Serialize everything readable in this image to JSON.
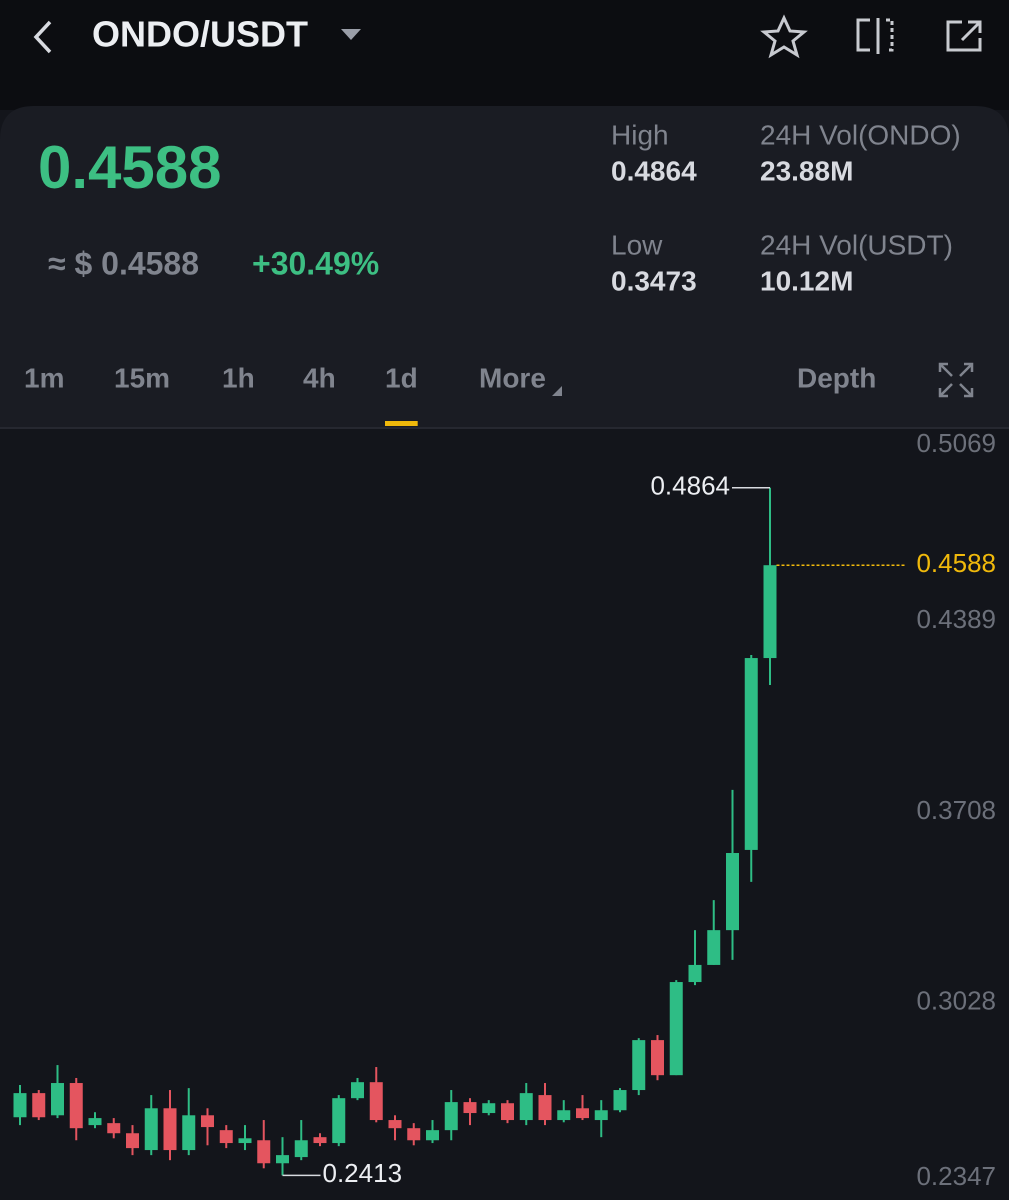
{
  "header": {
    "title": "ONDO/USDT"
  },
  "ticker": {
    "last": "0.4588",
    "approx": "≈ $ 0.4588",
    "change": "+30.49%",
    "stats": [
      {
        "label": "High",
        "value": "0.4864"
      },
      {
        "label": "24H Vol(ONDO)",
        "value": "23.88M"
      },
      {
        "label": "Low",
        "value": "0.3473"
      },
      {
        "label": "24H Vol(USDT)",
        "value": "10.12M"
      }
    ]
  },
  "tabs": {
    "intervals": [
      "1m",
      "15m",
      "1h",
      "4h",
      "1d"
    ],
    "active": 4,
    "more": "More",
    "depth": "Depth"
  },
  "chart_data": {
    "type": "candlestick",
    "up_color": "#2ebd85",
    "down_color": "#e4555f",
    "last_color": "#f0b90b",
    "ylim": [
      0.2325,
      0.507
    ],
    "yticks": [
      0.5069,
      0.4389,
      0.3708,
      0.3028,
      0.2347
    ],
    "ohlc": [
      [
        0.262,
        0.2735,
        0.2592,
        0.2706
      ],
      [
        0.2706,
        0.2717,
        0.261,
        0.262
      ],
      [
        0.2627,
        0.2806,
        0.2617,
        0.2742
      ],
      [
        0.2742,
        0.276,
        0.2538,
        0.2581
      ],
      [
        0.2592,
        0.2638,
        0.2581,
        0.2617
      ],
      [
        0.2599,
        0.2617,
        0.2545,
        0.2563
      ],
      [
        0.2563,
        0.2592,
        0.2485,
        0.251
      ],
      [
        0.2503,
        0.2699,
        0.2485,
        0.2652
      ],
      [
        0.2652,
        0.2717,
        0.2467,
        0.2503
      ],
      [
        0.2503,
        0.2724,
        0.2485,
        0.2627
      ],
      [
        0.2627,
        0.2652,
        0.252,
        0.2585
      ],
      [
        0.2574,
        0.2592,
        0.251,
        0.2528
      ],
      [
        0.2528,
        0.2592,
        0.2503,
        0.2545
      ],
      [
        0.2538,
        0.261,
        0.2438,
        0.2456
      ],
      [
        0.2456,
        0.2549,
        0.2413,
        0.2485
      ],
      [
        0.2478,
        0.261,
        0.2467,
        0.2538
      ],
      [
        0.2549,
        0.2563,
        0.2517,
        0.2528
      ],
      [
        0.2528,
        0.2699,
        0.2517,
        0.2688
      ],
      [
        0.2688,
        0.276,
        0.2681,
        0.2745
      ],
      [
        0.2745,
        0.2799,
        0.2602,
        0.261
      ],
      [
        0.261,
        0.2627,
        0.2538,
        0.2581
      ],
      [
        0.2581,
        0.2599,
        0.252,
        0.2538
      ],
      [
        0.2538,
        0.261,
        0.2528,
        0.2574
      ],
      [
        0.2574,
        0.2717,
        0.2538,
        0.2674
      ],
      [
        0.2674,
        0.2688,
        0.2592,
        0.2635
      ],
      [
        0.2635,
        0.2681,
        0.2627,
        0.267
      ],
      [
        0.267,
        0.2681,
        0.2599,
        0.261
      ],
      [
        0.261,
        0.2742,
        0.2592,
        0.2706
      ],
      [
        0.2699,
        0.2742,
        0.2592,
        0.261
      ],
      [
        0.261,
        0.2681,
        0.2602,
        0.2645
      ],
      [
        0.2652,
        0.2699,
        0.261,
        0.2617
      ],
      [
        0.261,
        0.2681,
        0.2549,
        0.2645
      ],
      [
        0.2645,
        0.2724,
        0.2638,
        0.2717
      ],
      [
        0.2717,
        0.2902,
        0.2699,
        0.2895
      ],
      [
        0.2895,
        0.2913,
        0.2752,
        0.277
      ],
      [
        0.277,
        0.3109,
        0.277,
        0.3102
      ],
      [
        0.3102,
        0.3287,
        0.3091,
        0.3163
      ],
      [
        0.3163,
        0.3394,
        0.3163,
        0.3287
      ],
      [
        0.3287,
        0.3787,
        0.3181,
        0.3562
      ],
      [
        0.3573,
        0.4268,
        0.3459,
        0.4257
      ],
      [
        0.4257,
        0.4864,
        0.4161,
        0.4588
      ]
    ]
  }
}
